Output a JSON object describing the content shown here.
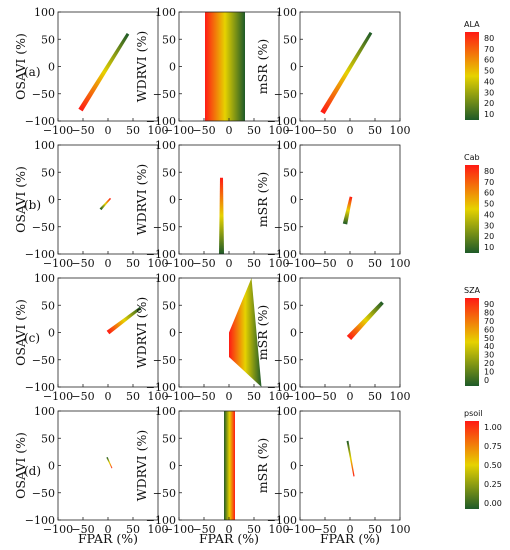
{
  "colors": {
    "low": "#1e5a28",
    "mid": "#e6d200",
    "high": "#ff1a14"
  },
  "chart_data": {
    "type": "scatter",
    "x_label": "FPAR (%)",
    "xlim": [
      -100,
      100
    ],
    "ylim": [
      -100,
      100
    ],
    "x_ticks": [
      "−100",
      "−50",
      "0",
      "50",
      "100"
    ],
    "y_ticks": [
      "100",
      "50",
      "0",
      "−50",
      "−100"
    ],
    "columns": [
      {
        "ylabel": "OSAVI (%)"
      },
      {
        "ylabel": "WDRVI (%)"
      },
      {
        "ylabel": "mSR (%)"
      }
    ],
    "rows": [
      {
        "label": "(a)",
        "colorbar": {
          "title": "ALA",
          "min": 10,
          "max": 80,
          "ticks": [
            "80",
            "70",
            "60",
            "50",
            "40",
            "30",
            "20",
            "10"
          ]
        },
        "panels": [
          {
            "shape": "band",
            "from": [
              -55,
              -80
            ],
            "to": [
              40,
              60
            ],
            "width": 10,
            "low_end": "to"
          },
          {
            "shape": "strip",
            "x_left": -48,
            "x_right": 32,
            "y_range": [
              -100,
              100
            ],
            "low_end": "right"
          },
          {
            "shape": "band",
            "from": [
              -55,
              -85
            ],
            "to": [
              42,
              62
            ],
            "width": 10,
            "low_end": "to"
          }
        ]
      },
      {
        "label": "(b)",
        "colorbar": {
          "title": "Cab",
          "min": 10,
          "max": 80,
          "ticks": [
            "80",
            "70",
            "60",
            "50",
            "40",
            "30",
            "20",
            "10"
          ]
        },
        "panels": [
          {
            "shape": "band",
            "from": [
              -15,
              -18
            ],
            "to": [
              5,
              2
            ],
            "width": 5,
            "low_end": "from"
          },
          {
            "shape": "band",
            "from": [
              -15,
              -100
            ],
            "to": [
              -15,
              40
            ],
            "width": 10,
            "low_end": "from"
          },
          {
            "shape": "band",
            "from": [
              -10,
              -45
            ],
            "to": [
              2,
              5
            ],
            "width": 9,
            "low_end": "from"
          }
        ]
      },
      {
        "label": "(c)",
        "colorbar": {
          "title": "SZA",
          "min": 0,
          "max": 90,
          "ticks": [
            "90",
            "80",
            "70",
            "60",
            "50",
            "40",
            "30",
            "20",
            "10",
            "0"
          ]
        },
        "panels": [
          {
            "shape": "band",
            "from": [
              0,
              0
            ],
            "to": [
              65,
              45
            ],
            "width": 9,
            "low_end": "to"
          },
          {
            "shape": "fan",
            "points": [
              [
                0,
                0
              ],
              [
                45,
                100
              ],
              [
                65,
                -100
              ],
              [
                0,
                -45
              ]
            ],
            "low_end": "right"
          },
          {
            "shape": "band",
            "from": [
              -2,
              -10
            ],
            "to": [
              65,
              55
            ],
            "width": 12,
            "low_end": "to"
          }
        ]
      },
      {
        "label": "(d)",
        "colorbar": {
          "title": "psoil",
          "min": 0,
          "max": 1,
          "ticks": [
            "1.00",
            "0.75",
            "0.50",
            "0.25",
            "0.00"
          ]
        },
        "panels": [
          {
            "shape": "band",
            "from": [
              -2,
              15
            ],
            "to": [
              8,
              -5
            ],
            "width": 3,
            "low_end": "from"
          },
          {
            "shape": "strip",
            "x_left": -10,
            "x_right": 12,
            "y_range": [
              -100,
              100
            ],
            "low_end": "left"
          },
          {
            "shape": "band",
            "from": [
              -5,
              45
            ],
            "to": [
              8,
              -20
            ],
            "width": 4,
            "low_end": "from"
          }
        ]
      }
    ]
  }
}
